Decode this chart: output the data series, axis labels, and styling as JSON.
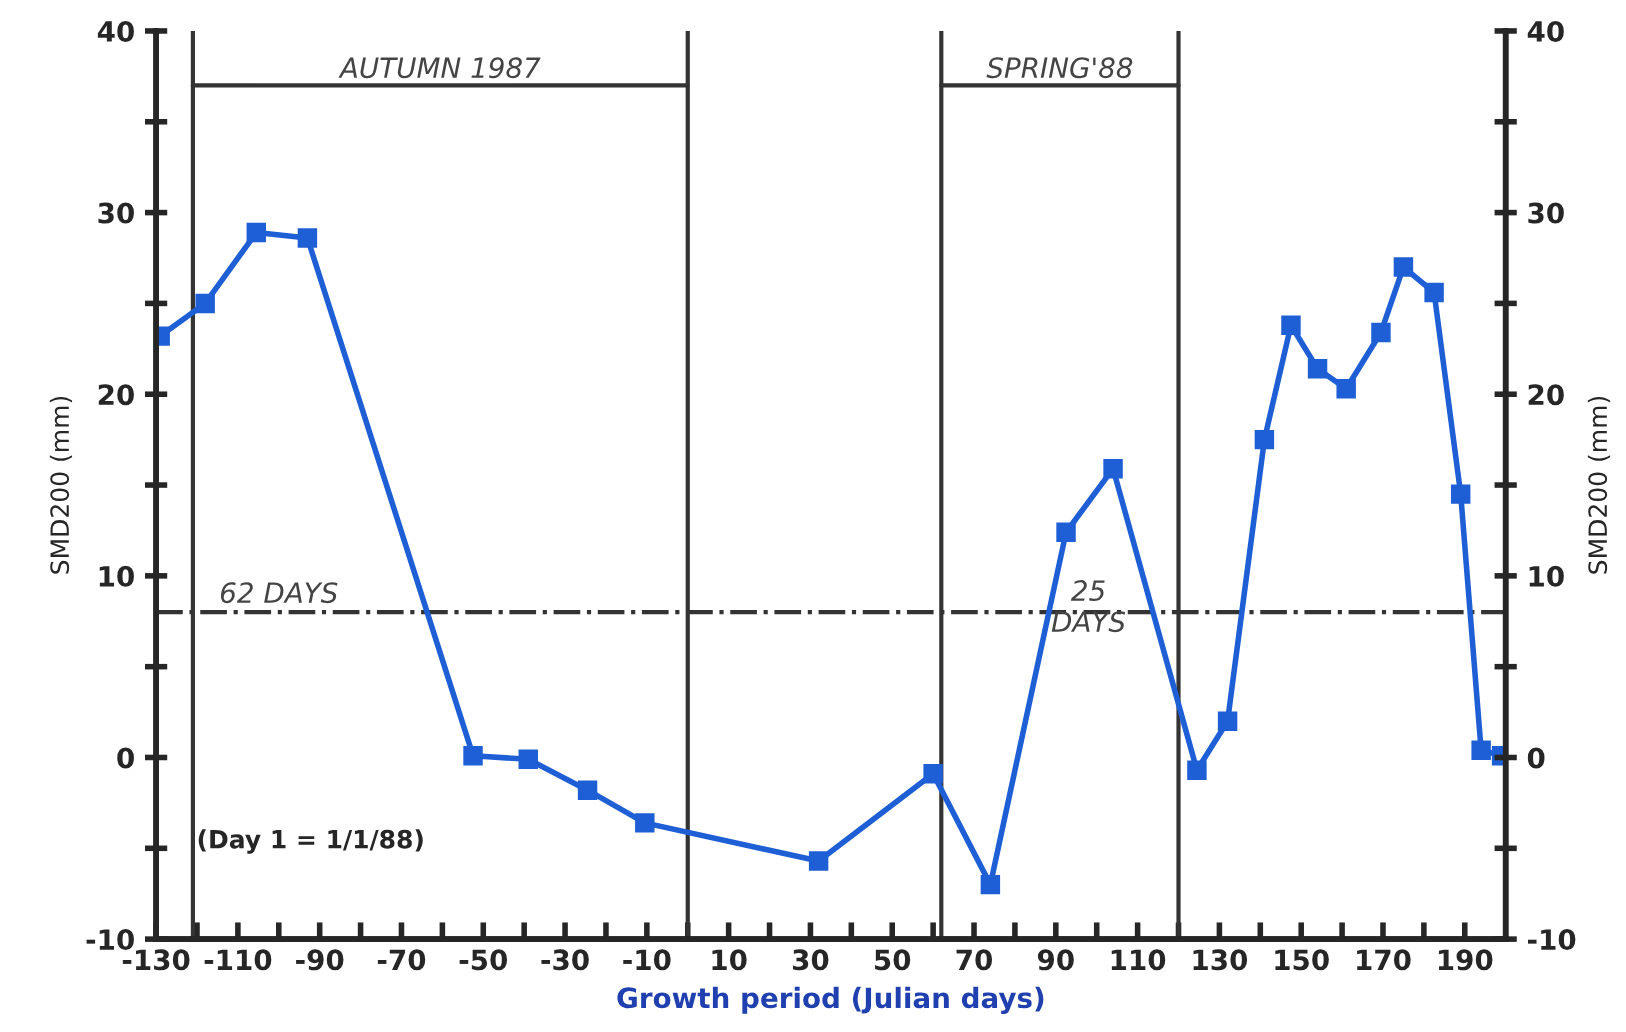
{
  "chart_data": {
    "type": "line",
    "xlabel": "Growth period (Julian days)",
    "ylabel": "SMD200 (mm)",
    "y2label": "SMD200 (mm)",
    "x": [
      -129,
      -118,
      -105.5,
      -93,
      -52.5,
      -39,
      -24.5,
      -10.5,
      32,
      60,
      74,
      92.5,
      104,
      124.5,
      132,
      141,
      147.5,
      154,
      161,
      169.5,
      175,
      182.5,
      189,
      194,
      199
    ],
    "series": [
      {
        "color": "#1f5fd6",
        "values": [
          23.2,
          25,
          28.9,
          28.6,
          0.1,
          -0.1,
          -1.8,
          -3.6,
          -5.7,
          -0.9,
          -7,
          12.4,
          15.9,
          -0.7,
          2,
          17.5,
          23.8,
          21.4,
          20.3,
          23.4,
          27,
          25.6,
          14.5,
          0.4,
          0.1
        ]
      }
    ],
    "marker": "square",
    "line_style": "solid",
    "xlim": [
      -130,
      200
    ],
    "xticks": [
      -130,
      {
        "value": -120,
        "label": null
      },
      -110,
      {
        "value": -100,
        "label": null
      },
      -90,
      {
        "value": -80,
        "label": null
      },
      -70,
      {
        "value": -60,
        "label": null
      },
      -50,
      {
        "value": -40,
        "label": null
      },
      -30,
      {
        "value": -20,
        "label": null
      },
      -10,
      {
        "value": 0,
        "label": null
      },
      10,
      {
        "value": 20,
        "label": null
      },
      30,
      {
        "value": 40,
        "label": null
      },
      50,
      {
        "value": 60,
        "label": null
      },
      70,
      {
        "value": 80,
        "label": null
      },
      90,
      {
        "value": 100,
        "label": null
      },
      110,
      {
        "value": 120,
        "label": null
      },
      130,
      {
        "value": 140,
        "label": null
      },
      150,
      {
        "value": 160,
        "label": null
      },
      170,
      {
        "value": 180,
        "label": null
      },
      190
    ],
    "ylim": [
      -10,
      40
    ],
    "yticks": [
      -10,
      {
        "value": -5,
        "label": null
      },
      0,
      {
        "value": 5,
        "label": null
      },
      10,
      {
        "value": 15,
        "label": null
      },
      20,
      {
        "value": 25,
        "label": null
      },
      30,
      {
        "value": 35,
        "label": null
      },
      40
    ],
    "y2lim": [
      -10,
      40
    ],
    "y2ticks": [
      -10,
      {
        "value": -5,
        "label": null
      },
      0,
      {
        "value": 5,
        "label": null
      },
      10,
      {
        "value": 15,
        "label": null
      },
      20,
      {
        "value": 25,
        "label": null
      },
      30,
      {
        "value": 35,
        "label": null
      },
      40
    ],
    "ref_lines": [
      {
        "axis": "y",
        "value": 8,
        "color": "#333333",
        "line_style": "dashdot"
      },
      {
        "axis": "x",
        "value": -121,
        "color": "#333333"
      },
      {
        "axis": "x",
        "value": 0,
        "color": "#333333"
      },
      {
        "axis": "x",
        "value": 62,
        "color": "#333333"
      },
      {
        "axis": "x",
        "value": 120,
        "color": "#333333"
      }
    ],
    "annotations": [
      "AUTUMN 1987",
      "SPRING'88",
      {
        "text": "62 DAYS",
        "x": -100,
        "y": 8
      },
      {
        "text": "25\nDAYS",
        "x": 98,
        "y": 8
      },
      "(Day 1 = 1/1/88)"
    ]
  }
}
